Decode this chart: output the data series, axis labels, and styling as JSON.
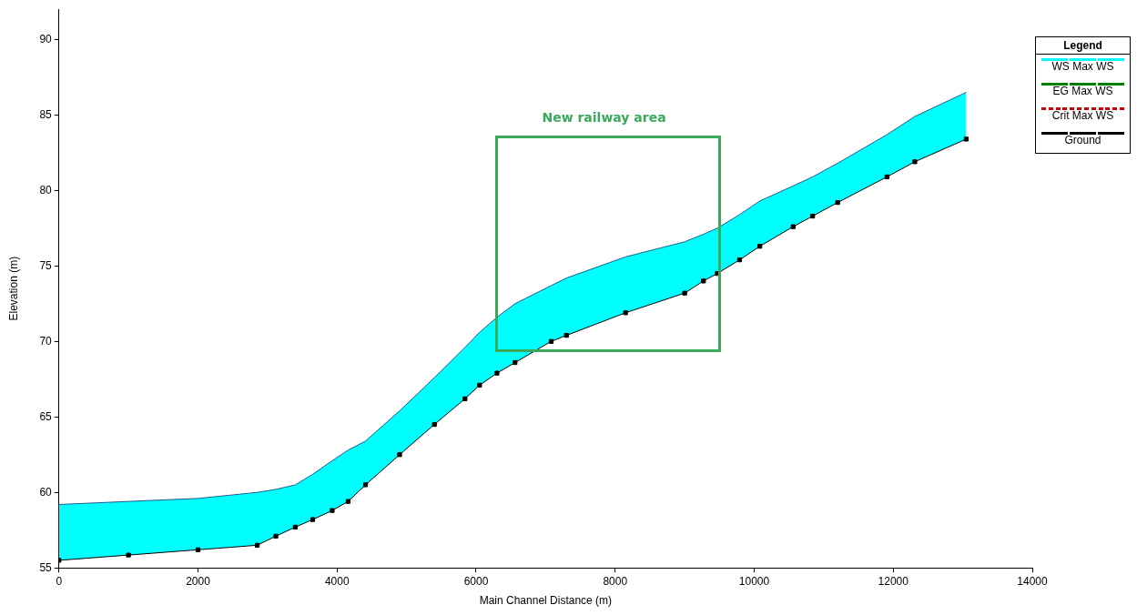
{
  "chart_data": {
    "type": "line",
    "xlabel": "Main Channel Distance (m)",
    "ylabel": "Elevation (m)",
    "legend_title": "Legend",
    "legend": "top right",
    "grid": false,
    "xlim": [
      0,
      14000
    ],
    "xticks": [
      0,
      2000,
      4000,
      6000,
      8000,
      10000,
      12000,
      14000
    ],
    "ylim": [
      55,
      92
    ],
    "yticks": [
      55,
      60,
      65,
      70,
      75,
      80,
      85,
      90
    ],
    "annotations": [
      "New railway area"
    ],
    "x": [
      0,
      1000,
      2000,
      2852,
      3120,
      3400,
      3650,
      3930,
      4160,
      4410,
      4900,
      5400,
      5840,
      6050,
      6300,
      6560,
      7080,
      7300,
      8150,
      9000,
      9270,
      9470,
      9790,
      10080,
      10560,
      10840,
      11200,
      11910,
      12310,
      13050
    ],
    "series": [
      {
        "name": "WS  Max WS",
        "type": "area",
        "color": "#00ffff",
        "values": [
          59.2,
          59.4,
          59.6,
          60.0,
          60.2,
          60.5,
          61.2,
          62.1,
          62.8,
          63.4,
          65.4,
          67.6,
          69.6,
          70.6,
          71.6,
          72.5,
          73.7,
          74.2,
          75.6,
          76.6,
          77.1,
          77.5,
          78.4,
          79.3,
          80.3,
          80.9,
          81.8,
          83.7,
          84.9,
          86.5
        ]
      },
      {
        "name": "EG  Max WS",
        "color": "#008000",
        "values": [
          null,
          null,
          null,
          null,
          null,
          null,
          null,
          null,
          null,
          null,
          null,
          null,
          null,
          null,
          null,
          null,
          null,
          null,
          null,
          null,
          null,
          null,
          null,
          null,
          null,
          null,
          null,
          null,
          null,
          null
        ]
      },
      {
        "name": "Crit  Max WS",
        "color": "#cc0000",
        "line_style": "dashed",
        "values": [
          null,
          null,
          null,
          null,
          null,
          null,
          null,
          null,
          null,
          null,
          null,
          null,
          null,
          null,
          null,
          null,
          null,
          null,
          null,
          null,
          null,
          null,
          null,
          null,
          null,
          null,
          null,
          null,
          null,
          null
        ]
      },
      {
        "name": "Ground",
        "color": "#000000",
        "marker": "square",
        "values": [
          55.5,
          55.85,
          56.2,
          56.5,
          57.1,
          57.7,
          58.2,
          58.8,
          59.4,
          60.5,
          62.5,
          64.5,
          66.2,
          67.1,
          67.9,
          68.6,
          70.0,
          70.4,
          71.9,
          73.2,
          74.0,
          74.5,
          75.4,
          76.3,
          77.6,
          78.3,
          79.2,
          80.9,
          81.9,
          83.4
        ]
      }
    ]
  }
}
